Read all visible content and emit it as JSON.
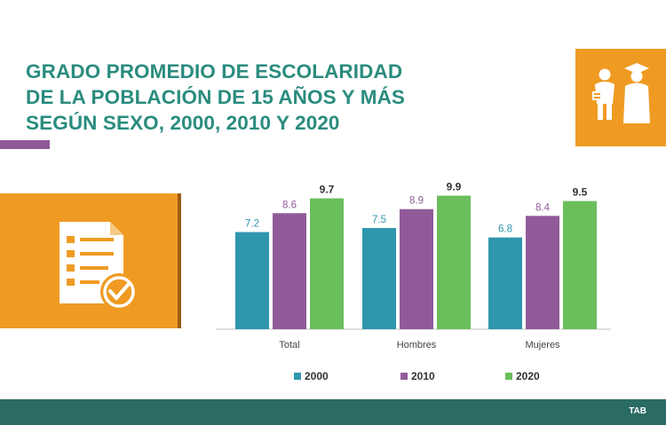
{
  "title": {
    "line1": "GRADO PROMEDIO DE ESCOLARIDAD",
    "line2": "DE LA POBLACIÓN DE 15 AÑOS Y MÁS",
    "line3": "SEGÚN SEXO, 2000, 2010 Y 2020"
  },
  "footer": {
    "tag": "TAB"
  },
  "colors": {
    "accent_orange": "#ef9b23",
    "title_teal": "#2a8c7e",
    "footer": "#2a6b63"
  },
  "chart_data": {
    "type": "bar",
    "title": "GRADO PROMEDIO DE ESCOLARIDAD DE LA POBLACIÓN DE 15 AÑOS Y MÁS SEGÚN SEXO, 2000, 2010 Y 2020",
    "categories": [
      "Total",
      "Hombres",
      "Mujeres"
    ],
    "series": [
      {
        "name": "2000",
        "color": "#2e96ad",
        "label_color": "#2e96ad",
        "bold": false,
        "values": [
          7.2,
          7.5,
          6.8
        ],
        "labels": [
          "7.2",
          "7.5",
          "6.8"
        ]
      },
      {
        "name": "2010",
        "color": "#905a99",
        "label_color": "#905a99",
        "bold": false,
        "values": [
          8.6,
          8.9,
          8.4
        ],
        "labels": [
          "8.6",
          "8.9",
          "8.4"
        ]
      },
      {
        "name": "2020",
        "color": "#6abf5c",
        "label_color": "#333333",
        "bold": true,
        "values": [
          9.7,
          9.9,
          9.5
        ],
        "labels": [
          "9.7",
          "9.9",
          "9.5"
        ]
      }
    ],
    "xlabel": "",
    "ylabel": "",
    "ylim": [
      0,
      10
    ],
    "grid": false,
    "legend": "bottom"
  }
}
